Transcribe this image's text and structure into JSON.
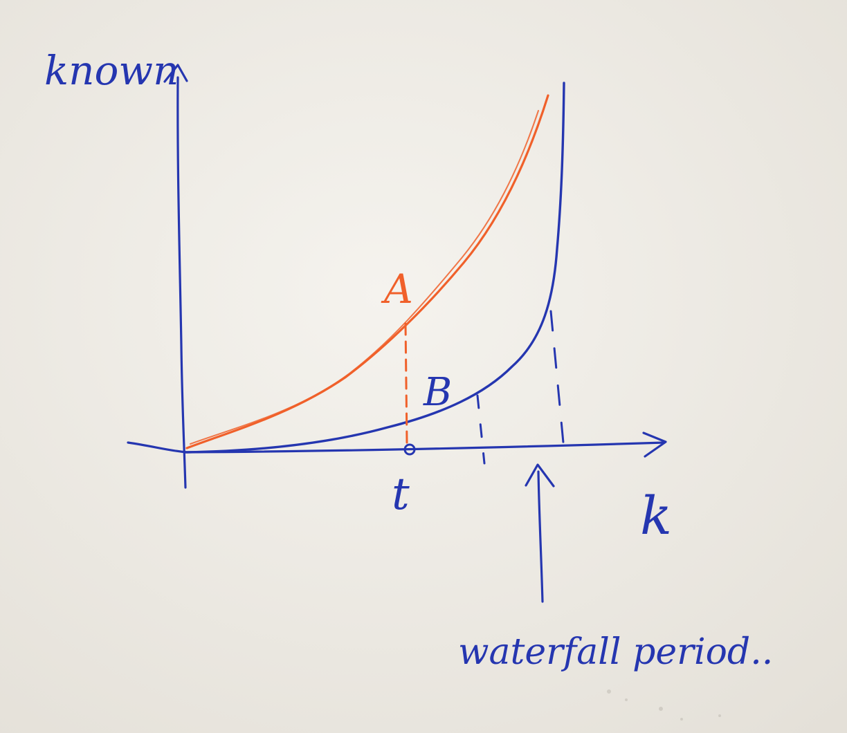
{
  "colors": {
    "paper": "#efece6",
    "blue_ink": "#2536b0",
    "orange_ink": "#f0602a"
  },
  "labels": {
    "y_axis": "known",
    "x_axis": "k",
    "curve_a": "A",
    "curve_b": "B",
    "point_t": "t",
    "annotation": "waterfall period.."
  },
  "curves": {
    "a": {
      "name": "A",
      "color": "orange"
    },
    "b": {
      "name": "B",
      "color": "blue"
    }
  }
}
